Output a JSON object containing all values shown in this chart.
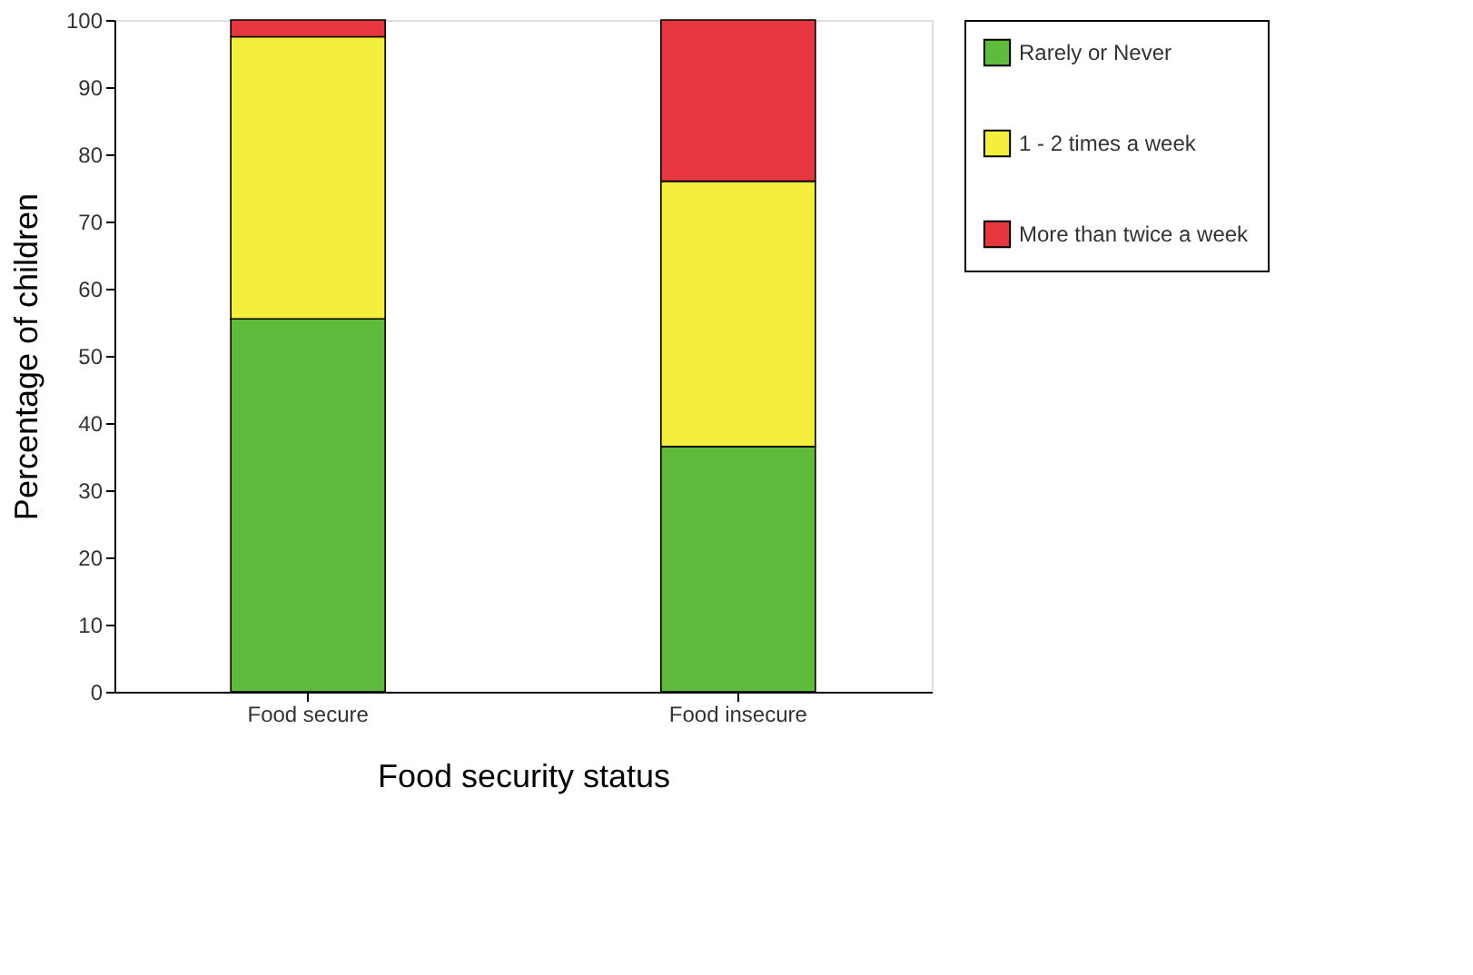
{
  "chart_data": {
    "type": "bar",
    "stacked": true,
    "xlabel": "Food security status",
    "ylabel": "Percentage of children",
    "categories": [
      "Food secure",
      "Food insecure"
    ],
    "series": [
      {
        "name": "Rarely or Never",
        "color": "#5fbb3c",
        "values": [
          55.5,
          36.5
        ]
      },
      {
        "name": "1 - 2 times a week",
        "color": "#f4ee3c",
        "values": [
          42,
          39.5
        ]
      },
      {
        "name": "More than twice a week",
        "color": "#e6363f",
        "values": [
          2.5,
          24
        ]
      }
    ],
    "ylim": [
      0,
      100
    ],
    "yticks": [
      0,
      10,
      20,
      30,
      40,
      50,
      60,
      70,
      80,
      90,
      100
    ],
    "grid": false,
    "legend": "right"
  }
}
